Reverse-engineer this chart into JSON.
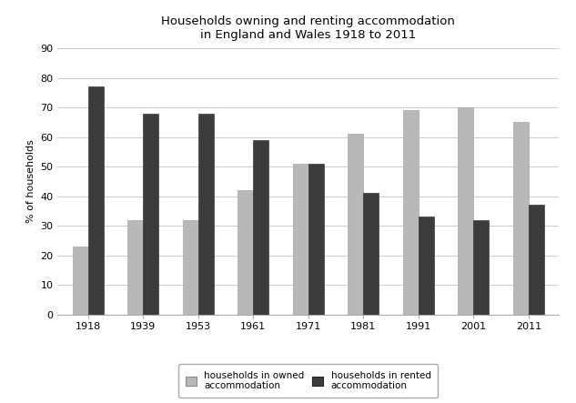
{
  "title_line1": "Households owning and renting accommodation",
  "title_line2": "in England and Wales 1918 to 2011",
  "years": [
    "1918",
    "1939",
    "1953",
    "1961",
    "1971",
    "1981",
    "1991",
    "2001",
    "2011"
  ],
  "owned": [
    23,
    32,
    32,
    42,
    51,
    61,
    69,
    70,
    65
  ],
  "rented": [
    77,
    68,
    68,
    59,
    51,
    41,
    33,
    32,
    37
  ],
  "owned_color": "#b8b8b8",
  "rented_color": "#3c3c3c",
  "ylabel": "% of households",
  "ylim": [
    0,
    90
  ],
  "yticks": [
    0,
    10,
    20,
    30,
    40,
    50,
    60,
    70,
    80,
    90
  ],
  "legend_owned": "households in owned\naccommodation",
  "legend_rented": "households in rented\naccommodation",
  "bar_width": 0.28,
  "background_color": "#ffffff",
  "plot_bg_color": "#ffffff",
  "grid_color": "#cccccc",
  "title_fontsize": 9.5,
  "tick_fontsize": 8,
  "ylabel_fontsize": 8,
  "legend_fontsize": 7.5
}
